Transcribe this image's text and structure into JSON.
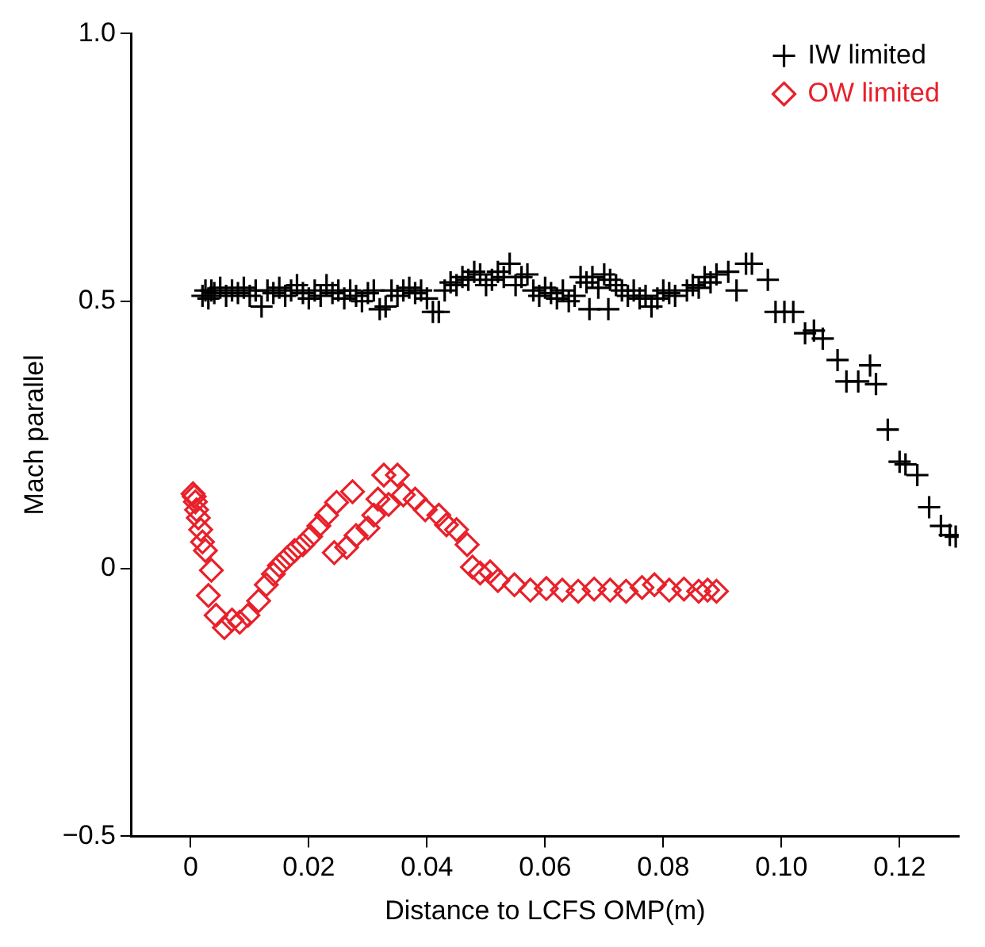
{
  "chart_data": {
    "type": "scatter",
    "xlabel": "Distance to LCFS OMP(m)",
    "ylabel": "Mach parallel",
    "xlim": [
      -0.01,
      0.13
    ],
    "ylim": [
      -0.5,
      1.0
    ],
    "xticks": [
      0,
      0.02,
      0.04,
      0.06,
      0.08,
      {
        "value": 0.1,
        "label": "0.10"
      },
      0.12
    ],
    "yticks": [
      {
        "value": -0.5,
        "label": "−0.5"
      },
      0,
      0.5,
      {
        "value": 1.0,
        "label": "1.0"
      }
    ],
    "grid": false,
    "legend": "top right",
    "series": [
      {
        "name": "IW limited",
        "color": "#000000",
        "marker": "cross",
        "x": [
          0.002,
          0.0025,
          0.003,
          0.0035,
          0.004,
          0.005,
          0.006,
          0.007,
          0.008,
          0.009,
          0.01,
          0.011,
          0.012,
          0.013,
          0.014,
          0.015,
          0.016,
          0.017,
          0.018,
          0.019,
          0.02,
          0.021,
          0.022,
          0.023,
          0.024,
          0.025,
          0.026,
          0.027,
          0.028,
          0.029,
          0.03,
          0.031,
          0.032,
          0.033,
          0.034,
          0.035,
          0.036,
          0.037,
          0.038,
          0.039,
          0.04,
          0.041,
          0.042,
          0.043,
          0.044,
          0.045,
          0.046,
          0.047,
          0.048,
          0.049,
          0.05,
          0.051,
          0.052,
          0.053,
          0.054,
          0.055,
          0.056,
          0.057,
          0.058,
          0.059,
          0.06,
          0.061,
          0.062,
          0.063,
          0.064,
          0.065,
          0.066,
          0.067,
          0.0675,
          0.068,
          0.069,
          0.07,
          0.0707,
          0.071,
          0.072,
          0.073,
          0.074,
          0.075,
          0.076,
          0.077,
          0.078,
          0.079,
          0.08,
          0.081,
          0.082,
          0.084,
          0.085,
          0.086,
          0.087,
          0.088,
          0.089,
          0.091,
          0.0924,
          0.094,
          0.095,
          0.0977,
          0.099,
          0.1005,
          0.102,
          0.104,
          0.1055,
          0.107,
          0.1095,
          0.111,
          0.113,
          0.115,
          0.116,
          0.118,
          0.12,
          0.121,
          0.123,
          0.125,
          0.127,
          0.1285,
          0.1295
        ],
        "values": [
          0.51,
          0.52,
          0.505,
          0.52,
          0.515,
          0.525,
          0.51,
          0.52,
          0.515,
          0.525,
          0.51,
          0.52,
          0.49,
          0.52,
          0.515,
          0.525,
          0.51,
          0.52,
          0.53,
          0.515,
          0.505,
          0.52,
          0.51,
          0.53,
          0.515,
          0.52,
          0.505,
          0.52,
          0.51,
          0.5,
          0.515,
          0.52,
          0.485,
          0.49,
          0.52,
          0.51,
          0.52,
          0.525,
          0.515,
          0.52,
          0.505,
          0.48,
          0.48,
          0.52,
          0.535,
          0.53,
          0.545,
          0.54,
          0.555,
          0.55,
          0.53,
          0.54,
          0.555,
          0.545,
          0.57,
          0.53,
          0.545,
          0.55,
          0.52,
          0.51,
          0.525,
          0.515,
          0.505,
          0.52,
          0.5,
          0.51,
          0.545,
          0.535,
          0.485,
          0.545,
          0.525,
          0.55,
          0.485,
          0.54,
          0.53,
          0.52,
          0.51,
          0.52,
          0.505,
          0.51,
          0.49,
          0.505,
          0.52,
          0.515,
          0.51,
          0.52,
          0.53,
          0.525,
          0.545,
          0.535,
          0.55,
          0.555,
          0.52,
          0.57,
          0.57,
          0.54,
          0.48,
          0.48,
          0.48,
          0.44,
          0.445,
          0.43,
          0.39,
          0.35,
          0.35,
          0.38,
          0.345,
          0.26,
          0.2,
          0.195,
          0.175,
          0.115,
          0.08,
          0.063,
          0.06
        ]
      },
      {
        "name": "OW limited",
        "color": "#e8202a",
        "marker": "diamond",
        "x": [
          0.0004,
          0.0006,
          0.0008,
          0.001,
          0.0013,
          0.0017,
          0.002,
          0.0025,
          0.003,
          0.0035,
          0.0043,
          0.0057,
          0.007,
          0.0083,
          0.0097,
          0.0115,
          0.0128,
          0.014,
          0.015,
          0.0163,
          0.0176,
          0.019,
          0.0203,
          0.0217,
          0.023,
          0.0247,
          0.0274,
          0.0243,
          0.0264,
          0.028,
          0.03,
          0.031,
          0.0317,
          0.0327,
          0.0335,
          0.035,
          0.036,
          0.038,
          0.0397,
          0.042,
          0.0433,
          0.045,
          0.0468,
          0.0477,
          0.049,
          0.0507,
          0.052,
          0.0548,
          0.0575,
          0.0602,
          0.0629,
          0.0656,
          0.0683,
          0.071,
          0.0737,
          0.0764,
          0.0785,
          0.081,
          0.0835,
          0.086,
          0.0875,
          0.089
        ],
        "values": [
          0.14,
          0.135,
          0.125,
          0.11,
          0.095,
          0.073,
          0.05,
          0.034,
          -0.05,
          -0.003,
          -0.087,
          -0.11,
          -0.096,
          -0.1,
          -0.087,
          -0.06,
          -0.03,
          -0.01,
          0.006,
          0.02,
          0.034,
          0.045,
          0.06,
          0.08,
          0.1,
          0.124,
          0.144,
          0.03,
          0.04,
          0.062,
          0.076,
          0.1,
          0.13,
          0.175,
          0.12,
          0.175,
          0.138,
          0.13,
          0.11,
          0.1,
          0.082,
          0.073,
          0.045,
          0.003,
          -0.008,
          -0.006,
          -0.022,
          -0.03,
          -0.04,
          -0.037,
          -0.04,
          -0.042,
          -0.038,
          -0.04,
          -0.042,
          -0.035,
          -0.03,
          -0.04,
          -0.038,
          -0.042,
          -0.04,
          -0.042
        ]
      }
    ]
  }
}
